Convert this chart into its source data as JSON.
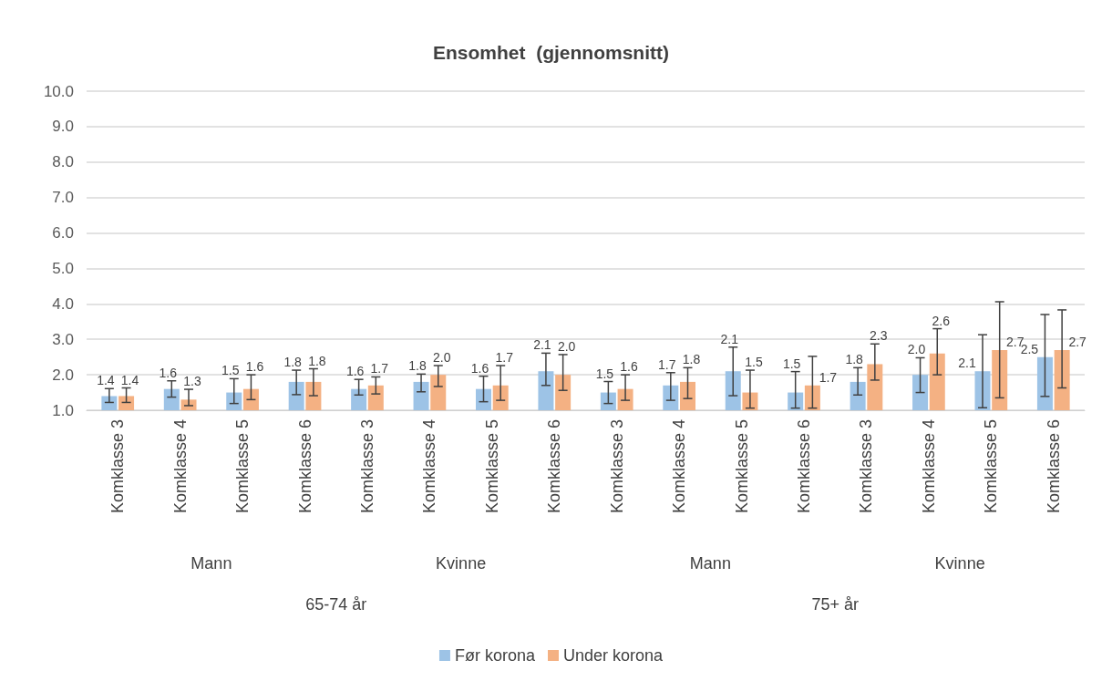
{
  "chart_data": {
    "type": "bar",
    "title": "Ensomhet  (gjennomsnitt)",
    "categories": [
      "Komklasse 3",
      "Komklasse 4",
      "Komklasse 5",
      "Komklasse 6",
      "Komklasse 3",
      "Komklasse 4",
      "Komklasse 5",
      "Komklasse 6",
      "Komklasse 3",
      "Komklasse 4",
      "Komklasse 5",
      "Komklasse 6",
      "Komklasse 3",
      "Komklasse 4",
      "Komklasse 5",
      "Komklasse 6"
    ],
    "annotations": [
      "Mann",
      "Kvinne",
      "Mann",
      "Kvinne",
      "65-74 år",
      "75+ år"
    ],
    "series": [
      {
        "name": "Før korona",
        "color": "#9dc3e6",
        "values": [
          1.4,
          1.6,
          1.5,
          1.8,
          1.6,
          1.8,
          1.6,
          2.1,
          1.5,
          1.7,
          2.1,
          1.5,
          1.8,
          2.0,
          2.1,
          2.5
        ],
        "value_labels": [
          "1.4",
          "1.6",
          "1.5",
          "1.8",
          "1.6",
          "1.8",
          "1.6",
          "2.1",
          "1.5",
          "1.7",
          "2.1",
          "1.5",
          "1.8",
          "2.0",
          "2.1",
          "2.5"
        ],
        "errors": [
          [
            1.22,
            1.61
          ],
          [
            1.37,
            1.83
          ],
          [
            1.19,
            1.89
          ],
          [
            1.44,
            2.13
          ],
          [
            1.43,
            1.87
          ],
          [
            1.52,
            2.02
          ],
          [
            1.24,
            1.96
          ],
          [
            1.7,
            2.61
          ],
          [
            1.19,
            1.81
          ],
          [
            1.28,
            2.06
          ],
          [
            1.41,
            2.78
          ],
          [
            1.06,
            2.09
          ],
          [
            1.43,
            2.2
          ],
          [
            1.5,
            2.48
          ],
          [
            1.07,
            3.13
          ],
          [
            1.39,
            3.7
          ]
        ]
      },
      {
        "name": "Under korona",
        "color": "#f4b183",
        "values": [
          1.4,
          1.3,
          1.6,
          1.8,
          1.7,
          2.0,
          1.7,
          2.0,
          1.6,
          1.8,
          1.5,
          1.7,
          2.3,
          2.6,
          2.7,
          2.7
        ],
        "value_labels": [
          "1.4",
          "1.3",
          "1.6",
          "1.8",
          "1.7",
          "2.0",
          "1.7",
          "2.0",
          "1.6",
          "1.8",
          "1.5",
          "1.7",
          "2.3",
          "2.6",
          "2.7",
          "2.7"
        ],
        "errors": [
          [
            1.22,
            1.63
          ],
          [
            1.13,
            1.59
          ],
          [
            1.3,
            2.0
          ],
          [
            1.41,
            2.17
          ],
          [
            1.46,
            1.94
          ],
          [
            1.67,
            2.26
          ],
          [
            1.28,
            2.26
          ],
          [
            1.56,
            2.57
          ],
          [
            1.28,
            2.0
          ],
          [
            1.33,
            2.2
          ],
          [
            1.06,
            2.13
          ],
          [
            1.06,
            2.52
          ],
          [
            1.85,
            2.87
          ],
          [
            2.0,
            3.3
          ],
          [
            1.35,
            4.06
          ],
          [
            1.63,
            3.83
          ]
        ]
      }
    ],
    "ylim": [
      1,
      10
    ],
    "yticks": [
      {
        "value": 1,
        "label": "1.0"
      },
      {
        "value": 2,
        "label": "2.0"
      },
      {
        "value": 3,
        "label": "3.0"
      },
      {
        "value": 4,
        "label": "4.0"
      },
      {
        "value": 5,
        "label": "5.0"
      },
      {
        "value": 6,
        "label": "6.0"
      },
      {
        "value": 7,
        "label": "7.0"
      },
      {
        "value": 8,
        "label": "8.0"
      },
      {
        "value": 9,
        "label": "9.0"
      },
      {
        "value": 10,
        "label": "10.0"
      }
    ],
    "grid": "y",
    "legend": "bottom"
  }
}
